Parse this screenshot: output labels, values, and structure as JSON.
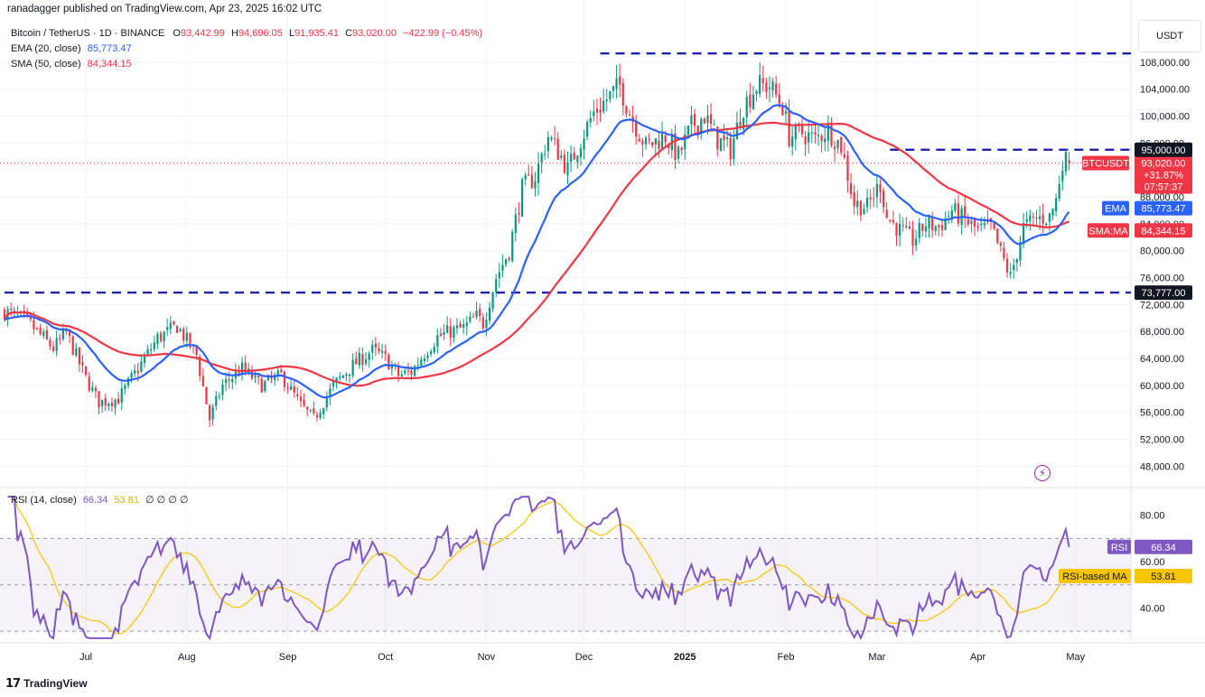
{
  "header": {
    "published": "ranadagger published on TradingView.com, Apr 23, 2025 16:02 UTC",
    "symbol_line": "Bitcoin / TetherUS · 1D · BINANCE",
    "o_label": "O",
    "o_value": "93,442.99",
    "h_label": "H",
    "h_value": "94,696.05",
    "l_label": "L",
    "l_value": "91,935.41",
    "c_label": "C",
    "c_value": "93,020.00",
    "change": "−422.99 (−0.45%)",
    "ema_label": "EMA (20, close)",
    "ema_value": "85,773.47",
    "sma_label": "SMA (50, close)",
    "sma_value": "84,344.15",
    "rsi_label": "RSI (14, close)",
    "rsi_value": "66.34",
    "rsi_ma_value": "53.81",
    "rsi_extra": "∅ ∅ ∅ ∅"
  },
  "brand": "TradingView",
  "currency": "USDT",
  "colors": {
    "up": "#089981",
    "down": "#f23645",
    "ema": "#2962ff",
    "sma": "#f23645",
    "level": "#1e22aa",
    "rsi": "#7e57c2",
    "rsi_ma": "#f7c400",
    "price_line": "#f23645"
  },
  "icons": {
    "logo": "tradingview-logo-icon",
    "alert": "lightning-icon"
  },
  "chart_data": {
    "type": "candlestick",
    "price_ticks": [
      "108,000.00",
      "104,000.00",
      "100,000.00",
      "96,000.00",
      "92,000.00",
      "88,000.00",
      "84,000.00",
      "80,000.00",
      "76,000.00",
      "72,000.00",
      "68,000.00",
      "64,000.00",
      "60,000.00",
      "56,000.00",
      "52,000.00",
      "48,000.00"
    ],
    "price_tick_values": [
      108000,
      104000,
      100000,
      96000,
      92000,
      88000,
      84000,
      80000,
      76000,
      72000,
      68000,
      64000,
      60000,
      56000,
      52000,
      48000
    ],
    "ylim": [
      45500,
      111200
    ],
    "x_labels": [
      "Jul",
      "Aug",
      "Sep",
      "Oct",
      "Nov",
      "Dec",
      "2025",
      "Feb",
      "Mar",
      "Apr",
      "May"
    ],
    "x_label_days": [
      18,
      49,
      80,
      110,
      141,
      171,
      202,
      233,
      261,
      292,
      322
    ],
    "day_range": [
      -7,
      339
    ],
    "levels": [
      {
        "value": 109300,
        "from_day": 176,
        "to_day": 339,
        "label": ""
      },
      {
        "value": 95000,
        "from_day": 265,
        "to_day": 339,
        "label": "95,000.00"
      },
      {
        "value": 73777,
        "from_day": -7,
        "to_day": 339,
        "label": "73,777.00"
      }
    ],
    "last_price": {
      "symbol": "BTCUSDT",
      "value": 93020,
      "label": "93,020.00",
      "change": "+31.87%",
      "countdown": "07:57:37"
    },
    "ema_tag": {
      "name": "EMA",
      "value": 85773.47,
      "label": "85,773.47"
    },
    "sma_tag": {
      "name": "SMA:MA",
      "value": 84344.15,
      "label": "84,344.15"
    },
    "price_anchors": [
      [
        -7,
        71000
      ],
      [
        0,
        69500
      ],
      [
        8,
        65500
      ],
      [
        12,
        67800
      ],
      [
        18,
        61000
      ],
      [
        22,
        57500
      ],
      [
        28,
        58000
      ],
      [
        34,
        62500
      ],
      [
        40,
        67000
      ],
      [
        46,
        68800
      ],
      [
        52,
        64500
      ],
      [
        56,
        55000
      ],
      [
        60,
        60000
      ],
      [
        66,
        62500
      ],
      [
        72,
        60000
      ],
      [
        78,
        61500
      ],
      [
        84,
        57000
      ],
      [
        88,
        55000
      ],
      [
        94,
        60000
      ],
      [
        100,
        63000
      ],
      [
        106,
        65200
      ],
      [
        110,
        64000
      ],
      [
        114,
        61500
      ],
      [
        118,
        62000
      ],
      [
        122,
        64800
      ],
      [
        126,
        67200
      ],
      [
        130,
        68000
      ],
      [
        134,
        68500
      ],
      [
        138,
        70200
      ],
      [
        140,
        69200
      ],
      [
        144,
        76000
      ],
      [
        148,
        80000
      ],
      [
        152,
        89200
      ],
      [
        156,
        91000
      ],
      [
        160,
        97000
      ],
      [
        164,
        94000
      ],
      [
        166,
        92000
      ],
      [
        170,
        96500
      ],
      [
        174,
        100500
      ],
      [
        178,
        102500
      ],
      [
        182,
        104500
      ],
      [
        185,
        100500
      ],
      [
        190,
        95500
      ],
      [
        196,
        97000
      ],
      [
        200,
        94000
      ],
      [
        204,
        98500
      ],
      [
        208,
        100000
      ],
      [
        212,
        96500
      ],
      [
        216,
        95000
      ],
      [
        220,
        101500
      ],
      [
        224,
        104500
      ],
      [
        228,
        104500
      ],
      [
        232,
        101500
      ],
      [
        234,
        97000
      ],
      [
        238,
        97500
      ],
      [
        242,
        96500
      ],
      [
        246,
        98000
      ],
      [
        250,
        95500
      ],
      [
        254,
        87000
      ],
      [
        258,
        86500
      ],
      [
        262,
        90000
      ],
      [
        264,
        85000
      ],
      [
        268,
        83000
      ],
      [
        272,
        81500
      ],
      [
        276,
        84000
      ],
      [
        280,
        83500
      ],
      [
        284,
        86000
      ],
      [
        288,
        84500
      ],
      [
        292,
        83000
      ],
      [
        296,
        83500
      ],
      [
        300,
        78500
      ],
      [
        302,
        76000
      ],
      [
        306,
        83500
      ],
      [
        310,
        84800
      ],
      [
        314,
        85000
      ],
      [
        316,
        87500
      ],
      [
        318,
        93500
      ],
      [
        320,
        93020
      ]
    ],
    "rsi": {
      "label": "RSI (14, close)",
      "value": 66.34,
      "ma_value": 53.81,
      "value_label": "66.34",
      "ma_value_label": "53.81",
      "value_tag": "RSI",
      "ma_tag": "RSI-based MA",
      "ticks": [
        "80.00",
        "60.00",
        "40.00"
      ],
      "tick_values": [
        80,
        60,
        40
      ],
      "band": [
        30,
        70
      ],
      "mid": 50,
      "ylim": [
        25,
        90
      ]
    }
  }
}
